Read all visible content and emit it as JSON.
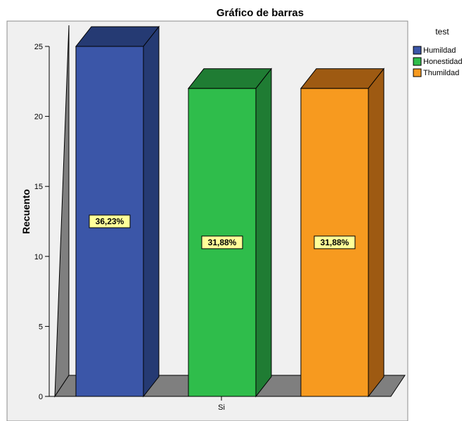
{
  "chart_data": {
    "type": "bar",
    "title": "Gráfico de barras",
    "xlabel": "",
    "ylabel": "Recuento",
    "categories": [
      "Si"
    ],
    "ylim": [
      0,
      25
    ],
    "yticks": [
      0,
      5,
      10,
      15,
      20,
      25
    ],
    "series": [
      {
        "name": "Humildad",
        "values": [
          25
        ],
        "label": "36,23%",
        "color": "#3b56a8",
        "top_color": "#253a73",
        "side_color": "#253a73"
      },
      {
        "name": "Honestidad",
        "values": [
          22
        ],
        "label": "31,88%",
        "color": "#2fbd4b",
        "top_color": "#1f7c33",
        "side_color": "#1f7c33"
      },
      {
        "name": "Thumildad",
        "values": [
          22
        ],
        "label": "31,88%",
        "color": "#f79a1f",
        "top_color": "#9e5a12",
        "side_color": "#9e5a12"
      }
    ],
    "legend": {
      "title": "test",
      "position": "right"
    },
    "grid": false,
    "style": {
      "plot_background": "#f0f0f0",
      "wall_color": "#7f7f7f",
      "label_box_fill": "#ffff99"
    }
  }
}
